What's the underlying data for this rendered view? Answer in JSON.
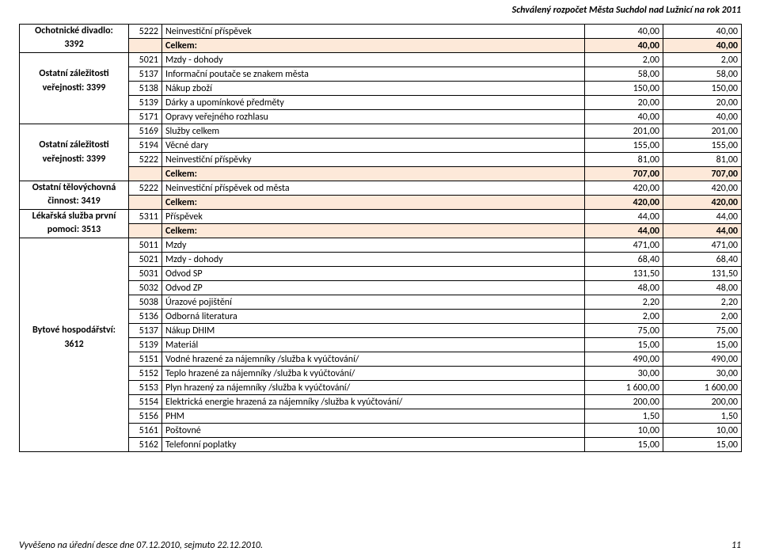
{
  "header": {
    "title_right": "Schválený rozpočet Města Suchdol nad Lužnicí na rok 2011"
  },
  "footer": {
    "left": "Vyvěšeno na úřední desce dne 07.12.2010, sejmuto 22.12.2010.",
    "page": "11"
  },
  "colors": {
    "celkem_bg": "#fde9d9"
  },
  "sections": [
    {
      "label_lines": [
        "Ochotnické divadlo:",
        "3392"
      ],
      "rows": [
        {
          "code": "5222",
          "desc": "Neinvestiční příspěvek",
          "v1": "40,00",
          "v2": "40,00"
        }
      ],
      "celkem": {
        "label": "Celkem:",
        "v1": "40,00",
        "v2": "40,00"
      }
    },
    {
      "label_lines": [
        "Ostatní záležitosti",
        "veřejnosti: 3399"
      ],
      "rows": [
        {
          "code": "5021",
          "desc": "Mzdy - dohody",
          "v1": "2,00",
          "v2": "2,00"
        },
        {
          "code": "5137",
          "desc": "Informační poutače se znakem města",
          "v1": "58,00",
          "v2": "58,00"
        },
        {
          "code": "5138",
          "desc": "Nákup zboží",
          "v1": "150,00",
          "v2": "150,00"
        },
        {
          "code": "5139",
          "desc": "Dárky a upomínkové předměty",
          "v1": "20,00",
          "v2": "20,00"
        },
        {
          "code": "5171",
          "desc": "Opravy veřejného rozhlasu",
          "v1": "40,00",
          "v2": "40,00"
        }
      ]
    },
    {
      "label_lines": [
        "Ostatní záležitosti",
        "veřejnosti: 3399"
      ],
      "rows": [
        {
          "code": "5169",
          "desc": "Služby celkem",
          "v1": "201,00",
          "v2": "201,00"
        },
        {
          "code": "5194",
          "desc": "Věcné dary",
          "v1": "155,00",
          "v2": "155,00"
        },
        {
          "code": "5222",
          "desc": "Neinvestiční příspěvky",
          "v1": "81,00",
          "v2": "81,00"
        }
      ],
      "celkem": {
        "label": "Celkem:",
        "v1": "707,00",
        "v2": "707,00"
      }
    },
    {
      "label_lines": [
        "Ostatní tělovýchovná",
        "činnost: 3419"
      ],
      "rows": [
        {
          "code": "5222",
          "desc": "Neinvestiční příspěvek od města",
          "v1": "420,00",
          "v2": "420,00"
        }
      ],
      "celkem": {
        "label": "Celkem:",
        "v1": "420,00",
        "v2": "420,00"
      }
    },
    {
      "label_lines": [
        "Lékařská služba první",
        "pomoci: 3513"
      ],
      "rows": [
        {
          "code": "5311",
          "desc": "Příspěvek",
          "v1": "44,00",
          "v2": "44,00"
        }
      ],
      "celkem": {
        "label": "Celkem:",
        "v1": "44,00",
        "v2": "44,00"
      }
    },
    {
      "label_lines": [
        "Bytové hospodářství:",
        "3612"
      ],
      "rows": [
        {
          "code": "5011",
          "desc": "Mzdy",
          "v1": "471,00",
          "v2": "471,00"
        },
        {
          "code": "5021",
          "desc": "Mzdy - dohody",
          "v1": "68,40",
          "v2": "68,40"
        },
        {
          "code": "5031",
          "desc": "Odvod SP",
          "v1": "131,50",
          "v2": "131,50"
        },
        {
          "code": "5032",
          "desc": "Odvod ZP",
          "v1": "48,00",
          "v2": "48,00"
        },
        {
          "code": "5038",
          "desc": "Úrazové pojištění",
          "v1": "2,20",
          "v2": "2,20"
        },
        {
          "code": "5136",
          "desc": "Odborná literatura",
          "v1": "2,00",
          "v2": "2,00"
        },
        {
          "code": "5137",
          "desc": "Nákup DHIM",
          "v1": "75,00",
          "v2": "75,00"
        },
        {
          "code": "5139",
          "desc": "Materiál",
          "v1": "15,00",
          "v2": "15,00"
        },
        {
          "code": "5151",
          "desc": "Vodné hrazené za nájemníky /služba k vyúčtování/",
          "v1": "490,00",
          "v2": "490,00"
        },
        {
          "code": "5152",
          "desc": "Teplo hrazené za nájemníky /služba k vyúčtování/",
          "v1": "30,00",
          "v2": "30,00"
        },
        {
          "code": "5153",
          "desc": "Plyn hrazený za nájemníky /služba k vyúčtování/",
          "v1": "1 600,00",
          "v2": "1 600,00"
        },
        {
          "code": "5154",
          "desc": "Elektrická energie hrazená za nájemníky  /služba k vyúčtování/",
          "v1": "200,00",
          "v2": "200,00"
        },
        {
          "code": "5156",
          "desc": "PHM",
          "v1": "1,50",
          "v2": "1,50"
        },
        {
          "code": "5161",
          "desc": "Poštovné",
          "v1": "10,00",
          "v2": "10,00"
        },
        {
          "code": "5162",
          "desc": "Telefonní poplatky",
          "v1": "15,00",
          "v2": "15,00"
        }
      ]
    }
  ]
}
